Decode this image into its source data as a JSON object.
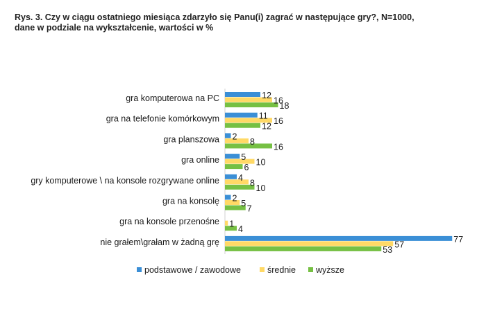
{
  "chart_data": {
    "type": "bar",
    "orientation": "horizontal",
    "title_line1": "Rys. 3. Czy w ciągu ostatniego miesiąca zdarzyło się Panu(i) zagrać w następujące gry?, N=1000,",
    "title_line2": "dane w podziale na wykształcenie, wartości w %",
    "categories": [
      "gra komputerowa na PC",
      "gra na telefonie komórkowym",
      "gra planszowa",
      "gra online",
      "gry komputerowe \\ na konsole rozgrywane online",
      "gra na konsolę",
      "gra na konsole przenośne",
      "nie grałem\\grałam w żadną grę"
    ],
    "series": [
      {
        "name": "podstawowe / zawodowe",
        "color": "#3b8fd6",
        "values": [
          12,
          11,
          2,
          5,
          4,
          2,
          0,
          77
        ]
      },
      {
        "name": "średnie",
        "color": "#ffd966",
        "values": [
          16,
          16,
          8,
          10,
          8,
          5,
          1,
          57
        ]
      },
      {
        "name": "wyższe",
        "color": "#76c043",
        "values": [
          18,
          12,
          16,
          6,
          10,
          7,
          4,
          53
        ]
      }
    ],
    "value_labels_shown": [
      [
        true,
        true,
        true,
        true,
        true,
        true,
        false,
        true
      ],
      [
        true,
        true,
        true,
        true,
        true,
        true,
        true,
        true
      ],
      [
        true,
        true,
        true,
        true,
        true,
        true,
        true,
        true
      ]
    ],
    "xlim": [
      0,
      77
    ],
    "grid": false,
    "legend_position": "bottom"
  }
}
